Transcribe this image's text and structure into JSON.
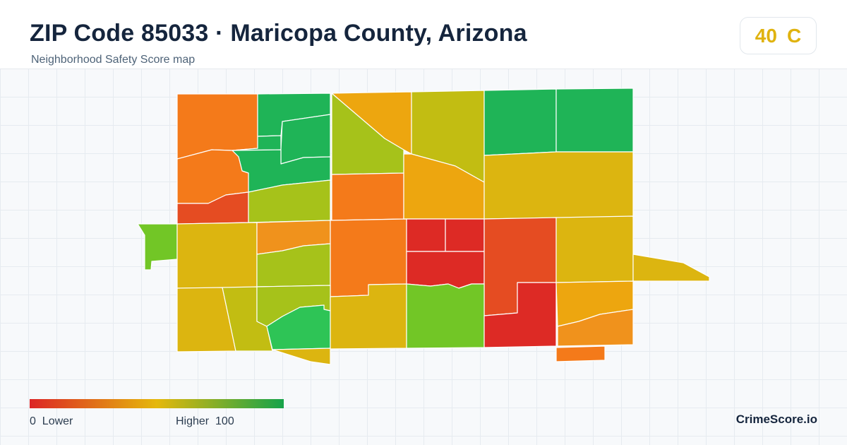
{
  "header": {
    "title": "ZIP Code 85033 · Maricopa County, Arizona",
    "subtitle": "Neighborhood Safety Score map"
  },
  "score": {
    "value": "40",
    "grade": "C",
    "color": "#e0b30f"
  },
  "legend": {
    "min_value": "0",
    "min_label": "Lower",
    "max_label": "Higher",
    "max_value": "100",
    "color_low": "#dc2626",
    "color_mid": "#e5b80b",
    "color_high": "#16a34a"
  },
  "brand": "CrimeScore.io",
  "map_colors": {
    "red": "#dd2a25",
    "red_orange": "#e54c22",
    "orange": "#f47a1a",
    "dark_orange": "#f0921c",
    "amber": "#eda60f",
    "mustard": "#dcb510",
    "olive": "#c2bd12",
    "yellow_green": "#a6c21a",
    "lime": "#72c626",
    "light_green": "#2ec456",
    "green": "#1fb457"
  }
}
